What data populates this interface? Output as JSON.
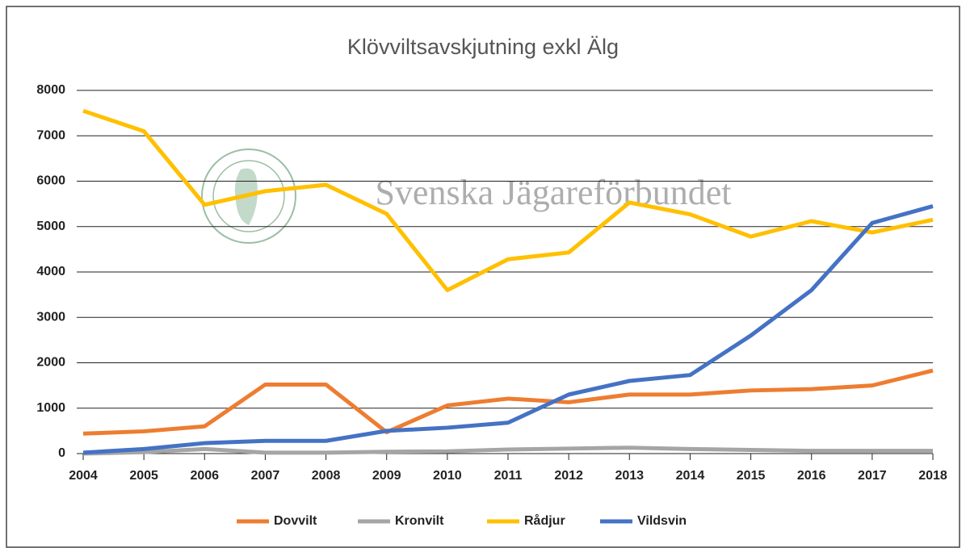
{
  "chart_data": {
    "type": "line",
    "title": "Klövviltsavskjutning exkl Älg",
    "watermark": "Svenska Jägareförbundet",
    "x": [
      2004,
      2005,
      2006,
      2007,
      2008,
      2009,
      2010,
      2011,
      2012,
      2013,
      2014,
      2015,
      2016,
      2017,
      2018
    ],
    "xlim": [
      2004,
      2018
    ],
    "xticks": [
      2004,
      2005,
      2006,
      2007,
      2008,
      2009,
      2010,
      2011,
      2012,
      2013,
      2014,
      2015,
      2016,
      2017,
      2018
    ],
    "ylim": [
      0,
      8000
    ],
    "yticks": [
      0,
      1000,
      2000,
      3000,
      4000,
      5000,
      6000,
      7000,
      8000
    ],
    "grid": true,
    "legend": "bottom",
    "series": [
      {
        "name": "Dovvilt",
        "color": "#ed7d31",
        "values": [
          440,
          490,
          600,
          1520,
          1520,
          470,
          1060,
          1210,
          1130,
          1300,
          1300,
          1390,
          1420,
          1500,
          1830
        ]
      },
      {
        "name": "Kronvilt",
        "color": "#a5a5a5",
        "values": [
          0,
          30,
          100,
          20,
          20,
          40,
          50,
          90,
          110,
          130,
          100,
          80,
          60,
          60,
          60
        ]
      },
      {
        "name": "Rådjur",
        "color": "#ffc000",
        "values": [
          7550,
          7100,
          5480,
          5780,
          5920,
          5280,
          3600,
          4280,
          4430,
          5530,
          5270,
          4780,
          5120,
          4870,
          5150
        ]
      },
      {
        "name": "Vildsvin",
        "color": "#4472c4",
        "values": [
          20,
          100,
          230,
          280,
          280,
          500,
          570,
          680,
          1300,
          1600,
          1730,
          2600,
          3600,
          5080,
          5450
        ]
      }
    ]
  }
}
